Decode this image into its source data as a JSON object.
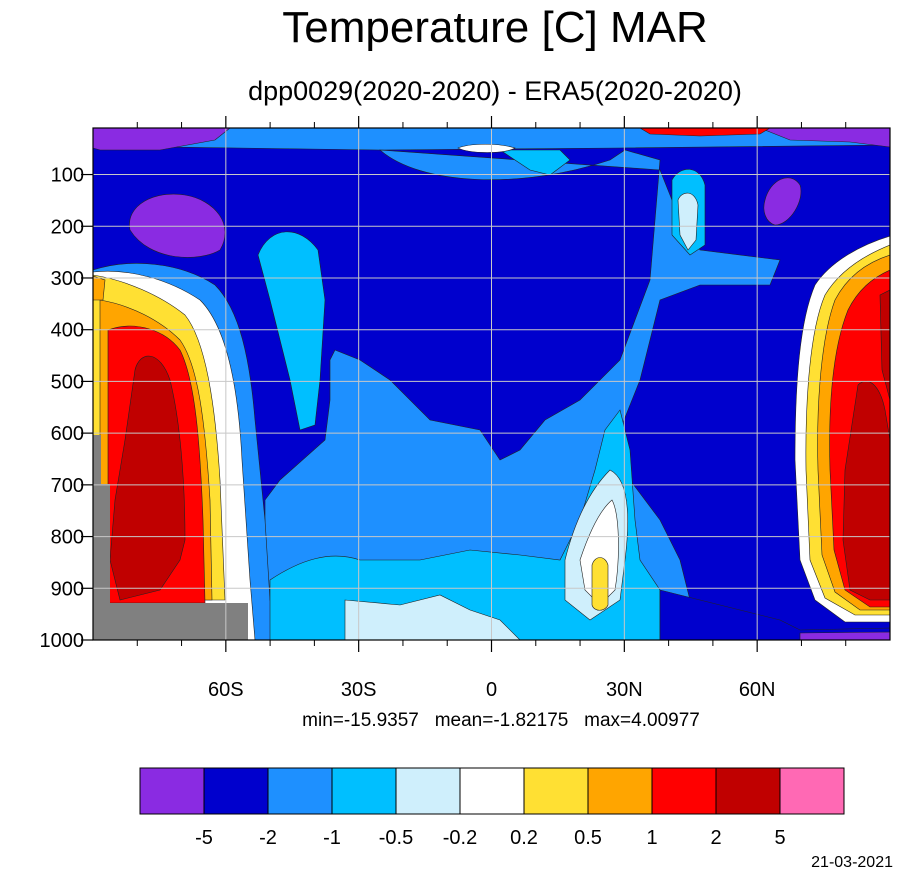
{
  "title": "Temperature [C] MAR",
  "subtitle": "dpp0029(2020-2020) - ERA5(2020-2020)",
  "stats": "min=-15.9357   mean=-1.82175   max=4.00977",
  "date": "21-03-2021",
  "chart_data": {
    "type": "heatmap",
    "title": "Temperature [C] MAR",
    "subtitle": "dpp0029(2020-2020) - ERA5(2020-2020)",
    "x_tick_labels": [
      "60S",
      "30S",
      "0",
      "30N",
      "60N"
    ],
    "x_ticks": [
      -60,
      -30,
      0,
      30,
      60
    ],
    "xlim": [
      -90,
      90
    ],
    "y_tick_labels": [
      "100",
      "200",
      "300",
      "400",
      "500",
      "600",
      "700",
      "800",
      "900",
      "1000"
    ],
    "y_ticks": [
      100,
      200,
      300,
      400,
      500,
      600,
      700,
      800,
      900,
      1000
    ],
    "ylim": [
      10,
      1000
    ],
    "y_reversed": true,
    "grid": true,
    "colorbar_labels": [
      "-5",
      "-2",
      "-1",
      "-0.5",
      "-0.2",
      "0.2",
      "0.5",
      "1",
      "2",
      "5"
    ],
    "colorbar_colors": [
      "#8a2be2",
      "#0000cd",
      "#1e90ff",
      "#00bfff",
      "#cfeffc",
      "#ffffff",
      "#ffe033",
      "#ffa500",
      "#ff0000",
      "#c00000",
      "#ff69b4"
    ],
    "missing_color": "#808080",
    "stats": {
      "min": -15.9357,
      "mean": -1.82175,
      "max": 4.00977
    }
  }
}
